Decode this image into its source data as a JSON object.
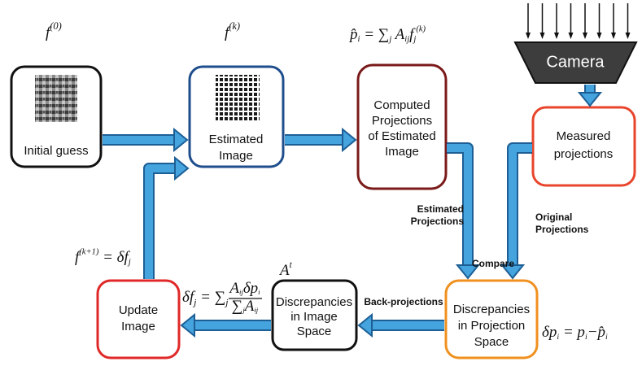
{
  "formulas": {
    "initial": [
      {
        "base": "f",
        "sup": "(0)"
      }
    ],
    "current": [
      {
        "base": "f",
        "sup": "(k)"
      }
    ],
    "projection": [
      {
        "base": "p̂",
        "sub": "i"
      },
      {
        "base": " = ∑",
        "sub": "j"
      },
      {
        "base": " A",
        "sub": "ij"
      },
      {
        "base": "f",
        "sub": "j",
        "sup": "(k)"
      }
    ],
    "update": [
      {
        "base": "f",
        "sup": "(k+1)"
      },
      {
        "base": " = δf",
        "sub": "j"
      }
    ],
    "backprojection": {
      "lhs": [
        {
          "base": "δf",
          "sub": "j"
        },
        {
          "base": " = ∑",
          "sub": "j"
        }
      ],
      "numerator": [
        {
          "base": "A",
          "sub": "ij"
        },
        {
          "base": "δp",
          "sub": "i"
        }
      ],
      "denominator": [
        {
          "base": "∑",
          "sub": "j"
        },
        {
          "base": "A",
          "sub": "ij"
        }
      ]
    },
    "transpose": [
      {
        "base": "A",
        "sup": "t"
      }
    ],
    "discrepancy": [
      {
        "base": "δp",
        "sub": "i"
      },
      {
        "base": " = p",
        "sub": "i"
      },
      {
        "base": "−p̂",
        "sub": "i"
      }
    ]
  },
  "boxes": {
    "initial_guess": [
      "Initial guess"
    ],
    "estimated_image": [
      "Estimated",
      "Image"
    ],
    "computed_projections": [
      "Computed",
      "Projections",
      "of Estimated",
      "Image"
    ],
    "measured_projections": [
      "Measured",
      "projections"
    ],
    "projection_discrepancies": [
      "Discrepancies",
      "in Projection",
      "Space"
    ],
    "image_discrepancies": [
      "Discrepancies",
      "in Image",
      "Space"
    ],
    "update_image": [
      "Update",
      "Image"
    ]
  },
  "camera": "Camera",
  "edges": {
    "estimated_projections": [
      "Estimated",
      "Projections"
    ],
    "original_projections": [
      "Original",
      "Projections"
    ],
    "compare": "Compare",
    "back_projections": "Back-projections"
  }
}
